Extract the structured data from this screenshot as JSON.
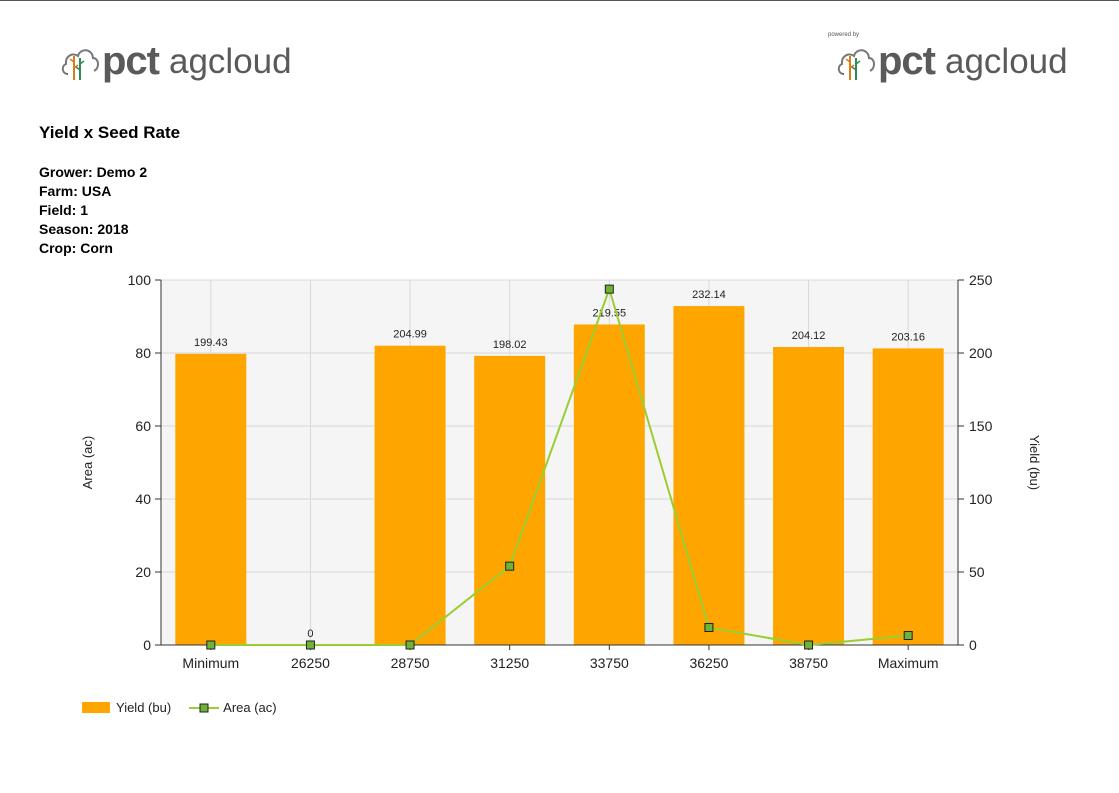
{
  "header": {
    "logo_left": {
      "brand": "pct",
      "name": "agcloud"
    },
    "logo_right": {
      "powered_by": "powered by",
      "brand": "pct",
      "name": "agcloud"
    }
  },
  "report": {
    "title": "Yield x Seed Rate",
    "info": {
      "grower": "Grower: Demo 2",
      "farm": "Farm: USA",
      "field": "Field: 1",
      "season": "Season: 2018",
      "crop": "Crop: Corn"
    }
  },
  "colors": {
    "bar": "#FFA500",
    "line": "#9ACD32",
    "marker_fill": "#6FB23A",
    "grid": "#d8d8d8",
    "plot_bg": "#f5f5f5"
  },
  "chart_data": {
    "type": "bar",
    "categories": [
      "Minimum",
      "26250",
      "28750",
      "31250",
      "33750",
      "36250",
      "38750",
      "Maximum"
    ],
    "series": [
      {
        "name": "Yield (bu)",
        "type": "bar",
        "axis": "right",
        "values": [
          199.43,
          0,
          204.99,
          198.02,
          219.55,
          232.14,
          204.12,
          203.16
        ]
      },
      {
        "name": "Area (ac)",
        "type": "line",
        "axis": "left",
        "values": [
          0,
          0,
          0,
          21.6,
          97.5,
          4.8,
          0,
          2.6
        ]
      }
    ],
    "data_labels": [
      "199.43",
      "0",
      "204.99",
      "198.02",
      "219.55",
      "232.14",
      "204.12",
      "203.16"
    ],
    "ylabel_left": "Area (ac)",
    "ylabel_right": "Yield (bu)",
    "ylim_left": [
      0,
      100
    ],
    "ylim_right": [
      0,
      250
    ],
    "yticks_left": [
      "0",
      "20",
      "40",
      "60",
      "80",
      "100"
    ],
    "yticks_right": [
      "0",
      "50",
      "100",
      "150",
      "200",
      "250"
    ],
    "grid": true,
    "legend_position": "bottom-left"
  }
}
